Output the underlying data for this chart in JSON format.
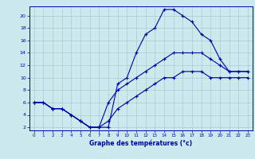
{
  "xlabel": "Graphe des températures (°c)",
  "bg_color": "#cce9ee",
  "grid_color": "#aacccc",
  "line_color": "#0000aa",
  "xmin": -0.5,
  "xmax": 23.5,
  "ymin": 1.5,
  "ymax": 21.5,
  "yticks": [
    2,
    4,
    6,
    8,
    10,
    12,
    14,
    16,
    18,
    20
  ],
  "xticks": [
    0,
    1,
    2,
    3,
    4,
    5,
    6,
    7,
    8,
    9,
    10,
    11,
    12,
    13,
    14,
    15,
    16,
    17,
    18,
    19,
    20,
    21,
    22,
    23
  ],
  "curve1_x": [
    0,
    1,
    2,
    3,
    4,
    5,
    6,
    7,
    8,
    9,
    10,
    11,
    12,
    13,
    14,
    15,
    16,
    17,
    18,
    19,
    20,
    21,
    22,
    23
  ],
  "curve1_y": [
    6,
    6,
    5,
    5,
    4,
    3,
    2,
    2,
    2,
    9,
    10,
    14,
    17,
    18,
    21,
    21,
    20,
    19,
    17,
    16,
    13,
    11,
    11,
    11
  ],
  "curve2_x": [
    0,
    1,
    2,
    3,
    4,
    5,
    6,
    7,
    8,
    9,
    10,
    11,
    12,
    13,
    14,
    15,
    16,
    17,
    18,
    19,
    20,
    21,
    22,
    23
  ],
  "curve2_y": [
    6,
    6,
    5,
    5,
    4,
    3,
    2,
    2,
    6,
    8,
    9,
    10,
    11,
    12,
    13,
    14,
    14,
    14,
    14,
    13,
    12,
    11,
    11,
    11
  ],
  "curve3_x": [
    0,
    1,
    2,
    3,
    4,
    5,
    6,
    7,
    8,
    9,
    10,
    11,
    12,
    13,
    14,
    15,
    16,
    17,
    18,
    19,
    20,
    21,
    22,
    23
  ],
  "curve3_y": [
    6,
    6,
    5,
    5,
    4,
    3,
    2,
    2,
    3,
    5,
    6,
    7,
    8,
    9,
    10,
    10,
    11,
    11,
    11,
    10,
    10,
    10,
    10,
    10
  ]
}
